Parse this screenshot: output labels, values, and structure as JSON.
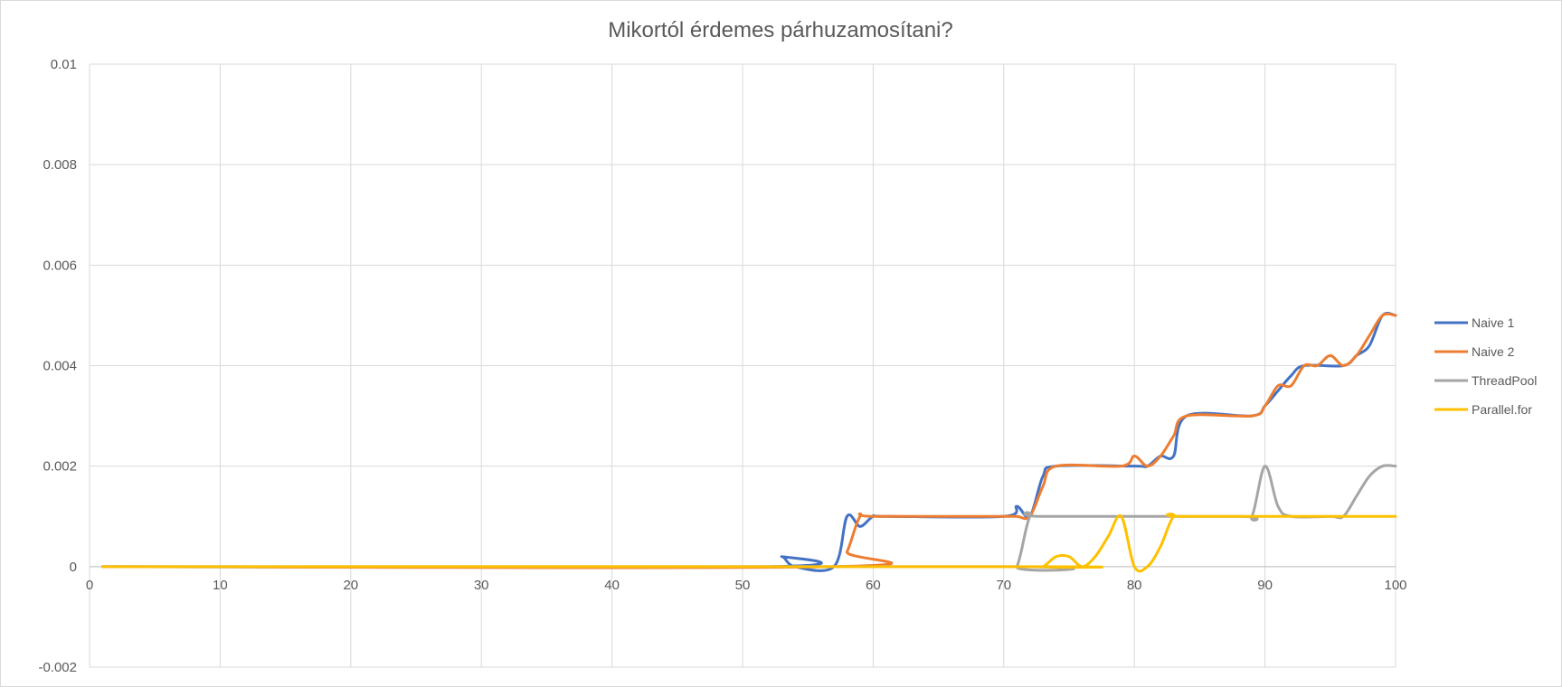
{
  "chart_data": {
    "type": "line",
    "title": "Mikortól érdemes párhuzamosítani?",
    "xlabel": "",
    "ylabel": "",
    "xlim": [
      0,
      100
    ],
    "ylim": [
      -0.002,
      0.01
    ],
    "x_ticks": [
      "0",
      "10",
      "20",
      "30",
      "40",
      "50",
      "60",
      "70",
      "80",
      "90",
      "100"
    ],
    "y_ticks": [
      "-0.002",
      "0",
      "0.002",
      "0.004",
      "0.006",
      "0.008",
      "0.01"
    ],
    "grid": true,
    "legend_position": "right",
    "series": [
      {
        "name": "Naive 1",
        "color": "#4472c4",
        "points": [
          [
            1,
            0
          ],
          [
            52,
            0
          ],
          [
            53,
            0.0002
          ],
          [
            54,
            0
          ],
          [
            57,
            0
          ],
          [
            58,
            0.001
          ],
          [
            59,
            0.0008
          ],
          [
            60,
            0.001
          ],
          [
            61,
            0.001
          ],
          [
            70,
            0.001
          ],
          [
            71,
            0.0012
          ],
          [
            72,
            0.001
          ],
          [
            73,
            0.0018
          ],
          [
            74,
            0.002
          ],
          [
            80,
            0.002
          ],
          [
            81,
            0.002
          ],
          [
            82,
            0.0022
          ],
          [
            83,
            0.0022
          ],
          [
            84,
            0.003
          ],
          [
            89,
            0.003
          ],
          [
            90,
            0.0032
          ],
          [
            91,
            0.0035
          ],
          [
            92,
            0.0038
          ],
          [
            93,
            0.004
          ],
          [
            96,
            0.004
          ],
          [
            97,
            0.0042
          ],
          [
            98,
            0.0044
          ],
          [
            99,
            0.005
          ],
          [
            100,
            0.005
          ]
        ]
      },
      {
        "name": "Naive 2",
        "color": "#ed7d31",
        "points": [
          [
            1,
            0
          ],
          [
            57,
            0
          ],
          [
            58,
            0.0003
          ],
          [
            59,
            0.001
          ],
          [
            60,
            0.001
          ],
          [
            70,
            0.001
          ],
          [
            71,
            0.001
          ],
          [
            72,
            0.001
          ],
          [
            73,
            0.0016
          ],
          [
            74,
            0.002
          ],
          [
            79,
            0.002
          ],
          [
            80,
            0.0022
          ],
          [
            81,
            0.002
          ],
          [
            82,
            0.0022
          ],
          [
            83,
            0.0026
          ],
          [
            84,
            0.003
          ],
          [
            89,
            0.003
          ],
          [
            90,
            0.0032
          ],
          [
            91,
            0.0036
          ],
          [
            92,
            0.0036
          ],
          [
            93,
            0.004
          ],
          [
            94,
            0.004
          ],
          [
            95,
            0.0042
          ],
          [
            96,
            0.004
          ],
          [
            97,
            0.0042
          ],
          [
            98,
            0.0046
          ],
          [
            99,
            0.005
          ],
          [
            100,
            0.005
          ]
        ]
      },
      {
        "name": "ThreadPool",
        "color": "#a5a5a5",
        "points": [
          [
            1,
            0
          ],
          [
            70,
            0
          ],
          [
            71,
            0
          ],
          [
            72,
            0.001
          ],
          [
            73,
            0.001
          ],
          [
            88,
            0.001
          ],
          [
            89,
            0.001
          ],
          [
            90,
            0.002
          ],
          [
            91,
            0.0012
          ],
          [
            92,
            0.001
          ],
          [
            95,
            0.001
          ],
          [
            96,
            0.001
          ],
          [
            97,
            0.0014
          ],
          [
            98,
            0.0018
          ],
          [
            99,
            0.002
          ],
          [
            100,
            0.002
          ]
        ]
      },
      {
        "name": "Parallel.for",
        "color": "#ffc000",
        "points": [
          [
            1,
            0
          ],
          [
            72,
            0
          ],
          [
            73,
            0
          ],
          [
            74,
            0.0002
          ],
          [
            75,
            0.0002
          ],
          [
            76,
            0
          ],
          [
            77,
            0.0002
          ],
          [
            78,
            0.0006
          ],
          [
            79,
            0.001
          ],
          [
            80,
            0
          ],
          [
            81,
            0
          ],
          [
            82,
            0.0004
          ],
          [
            83,
            0.001
          ],
          [
            84,
            0.001
          ],
          [
            100,
            0.001
          ]
        ]
      }
    ]
  }
}
